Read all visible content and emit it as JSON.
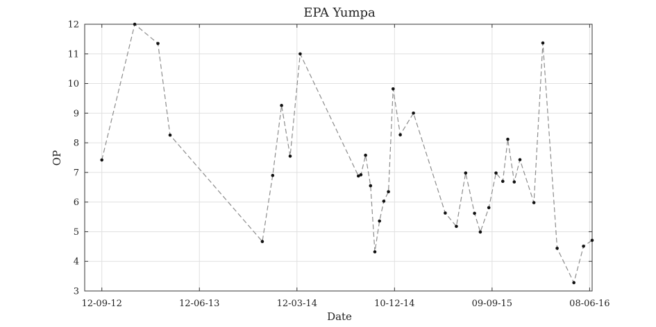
{
  "chart_data": {
    "type": "line",
    "title": "EPA Yumpa",
    "xlabel": "Date",
    "ylabel": "OP",
    "x_axis_kind": "date",
    "xlim": [
      "2012-07-26",
      "2016-06-15"
    ],
    "ylim": [
      3,
      12
    ],
    "grid": true,
    "x_ticks": [
      {
        "date": "2012-09-12",
        "label": "12-09-12"
      },
      {
        "date": "2013-06-12",
        "label": "12-06-13"
      },
      {
        "date": "2014-03-12",
        "label": "12-03-14"
      },
      {
        "date": "2014-12-10",
        "label": "10-12-14"
      },
      {
        "date": "2015-09-09",
        "label": "09-09-15"
      },
      {
        "date": "2016-06-08",
        "label": "08-06-16"
      }
    ],
    "y_ticks": [
      3,
      4,
      5,
      6,
      7,
      8,
      9,
      10,
      11,
      12
    ],
    "series": [
      {
        "x": [
          "2012-09-12",
          "2012-12-13",
          "2013-02-16",
          "2013-03-22",
          "2013-12-05",
          "2014-01-03",
          "2014-01-28",
          "2014-02-21",
          "2014-03-21",
          "2014-08-31",
          "2014-09-07",
          "2014-09-20",
          "2014-10-04",
          "2014-10-16",
          "2014-10-29",
          "2014-11-10",
          "2014-11-23",
          "2014-12-06",
          "2014-12-26",
          "2015-02-01",
          "2015-05-01",
          "2015-06-01",
          "2015-06-27",
          "2015-07-22",
          "2015-08-07",
          "2015-08-31",
          "2015-09-20",
          "2015-10-09",
          "2015-10-23",
          "2015-11-10",
          "2015-11-26",
          "2016-01-04",
          "2016-01-29",
          "2016-03-09",
          "2016-04-25",
          "2016-05-22",
          "2016-06-15"
        ],
        "values": [
          7.42,
          12.0,
          11.35,
          8.26,
          4.67,
          6.9,
          9.26,
          7.55,
          11.0,
          6.88,
          6.92,
          7.58,
          6.55,
          4.32,
          5.36,
          6.03,
          6.35,
          9.82,
          8.27,
          9.0,
          5.63,
          5.18,
          6.98,
          5.62,
          4.99,
          5.81,
          6.98,
          6.7,
          8.12,
          6.68,
          7.43,
          5.98,
          11.37,
          4.44,
          3.28,
          4.51,
          4.71
        ]
      }
    ]
  }
}
